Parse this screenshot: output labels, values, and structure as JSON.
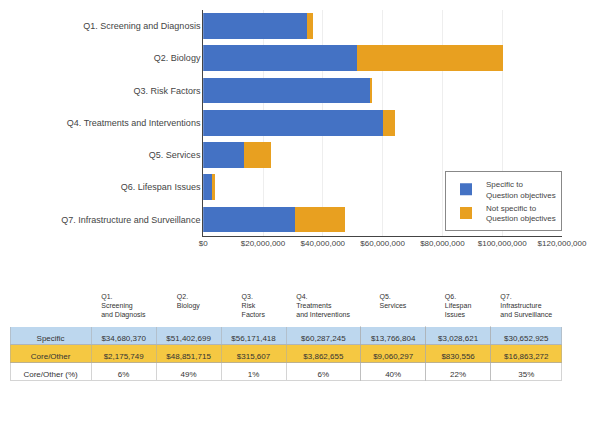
{
  "chart_data": [
    {
      "type": "bar",
      "orientation": "horizontal",
      "stacked": true,
      "categories": [
        "Q1. Screening and Diagnosis",
        "Q2. Biology",
        "Q3. Risk Factors",
        "Q4. Treatments and Interventions",
        "Q5. Services",
        "Q6. Lifespan Issues",
        "Q7. Infrastructure and Surveillance"
      ],
      "series": [
        {
          "name": "Specific to\nQuestion objectives",
          "color": "#4472C4",
          "values": [
            34680370,
            51402699,
            56171418,
            60287245,
            13766804,
            3028621,
            30652925
          ]
        },
        {
          "name": "Not specific to\nQuestion objectives",
          "color": "#E8A020",
          "values": [
            2175749,
            48851715,
            315607,
            3862655,
            9060297,
            830556,
            16863272
          ]
        }
      ],
      "xlim": [
        0,
        120000000
      ],
      "xticks": [
        {
          "value": 0,
          "label": "$0"
        },
        {
          "value": 20000000,
          "label": "$20,000,000"
        },
        {
          "value": 40000000,
          "label": "$40,000,000"
        },
        {
          "value": 60000000,
          "label": "$60,000,000"
        },
        {
          "value": 80000000,
          "label": "$80,000,000"
        },
        {
          "value": 100000000,
          "label": "$100,000,000"
        },
        {
          "value": 120000000,
          "label": "$120,000,000"
        }
      ],
      "grid": true,
      "legend": "lower right"
    },
    {
      "type": "table",
      "columns": [
        "Q1.\nScreening\nand Diagnosis",
        "Q2.\nBiology",
        "Q3.\nRisk\nFactors",
        "Q4.\nTreatments\nand Interventions",
        "Q5.\nServices",
        "Q6.\nLifespan\nIssues",
        "Q7.\nInfrastructure\nand Surveillance"
      ],
      "rows": [
        {
          "name": "Specific",
          "color": "#BDD7EE",
          "cells": [
            "$34,680,370",
            "$51,402,699",
            "$56,171,418",
            "$60,287,245",
            "$13,766,804",
            "$3,028,621",
            "$30,652,925"
          ]
        },
        {
          "name": "Core/Other",
          "color": "#F5C842",
          "cells": [
            "$2,175,749",
            "$48,851,715",
            "$315,607",
            "$3,862,655",
            "$9,060,297",
            "$830,556",
            "$16,863,272"
          ]
        },
        {
          "name": "Core/Other (%)",
          "color": "#FFFFFF",
          "cells": [
            "6%",
            "49%",
            "1%",
            "6%",
            "40%",
            "22%",
            "35%"
          ]
        }
      ]
    }
  ]
}
